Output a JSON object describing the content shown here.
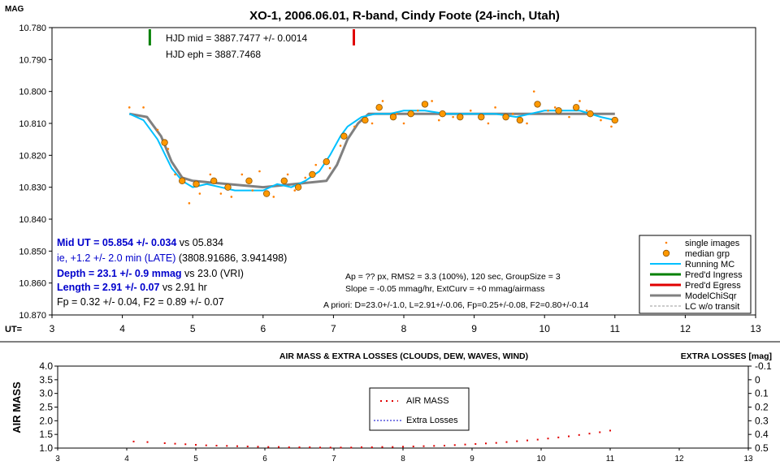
{
  "top_chart": {
    "title": "XO-1, 2006.06.01, R-band, Cindy Foote (24-inch, Utah)",
    "y_axis_label": "MAG",
    "x_axis_label": "UT=",
    "y_ticks": [
      "10.780",
      "10.790",
      "10.800",
      "10.810",
      "10.820",
      "10.830",
      "10.840",
      "10.850",
      "10.860",
      "10.870"
    ],
    "x_ticks": [
      "3",
      "4",
      "5",
      "6",
      "7",
      "8",
      "9",
      "10",
      "11",
      "12",
      "13"
    ],
    "hjd_mid": "HJD mid = 3887.7477 +/- 0.0014",
    "hjd_eph": "HJD eph = 3887.7468",
    "results": {
      "mid_ut_bold": "Mid UT = 05.854 +/- 0.034",
      "mid_ut_rest": " vs 05.834",
      "ie_line": "ie, +1.2 +/- 2.0 min (LATE)",
      "ie_rest": " (3808.91686, 3.941498)",
      "depth_bold": "Depth = 23.1 +/- 0.9 mmag",
      "depth_rest": " vs 23.0 (VRI)",
      "length_bold": "Length = 2.91 +/- 0.07",
      "length_rest": "  vs 2.91 hr",
      "fp_line": "Fp = 0.32 +/- 0.04, F2 = 0.89 +/- 0.07"
    },
    "fit_info": {
      "line1": "Ap = ?? px, RMS2 = 3.3 (100%), 120 sec, GroupSize = 3",
      "line2": "Slope = -0.05 mmag/hr, ExtCurv = +0 mmag/airmass",
      "line3": "A priori: D=23.0+/-1.0, L=2.91+/-0.06, Fp=0.25+/-0.08, F2=0.80+/-0.14"
    },
    "legend": [
      "single images",
      "median grp",
      "Running MC",
      "Pred'd Ingress",
      "Pred'd Egress",
      "ModelChiSqr",
      "LC w/o transit"
    ],
    "colors": {
      "points": "#ff8000",
      "median": "#ff9900",
      "running": "#00c0ff",
      "ingress": "#008000",
      "egress": "#e00000",
      "model": "#808080",
      "blue_text": "#0000cc"
    }
  },
  "chart_data": [
    {
      "type": "scatter",
      "title": "XO-1, 2006.06.01, R-band, Cindy Foote (24-inch, Utah)",
      "xlabel": "UT=",
      "ylabel": "MAG",
      "xlim": [
        3,
        13
      ],
      "ylim": [
        10.78,
        10.87
      ],
      "y_inverted": true,
      "series": [
        {
          "name": "median grp",
          "x": [
            4.6,
            4.85,
            5.05,
            5.3,
            5.5,
            5.8,
            6.05,
            6.3,
            6.5,
            6.7,
            6.9,
            7.15,
            7.45,
            7.65,
            7.85,
            8.1,
            8.3,
            8.55,
            8.8,
            9.1,
            9.45,
            9.65,
            9.9,
            10.2,
            10.45,
            10.65,
            11.0
          ],
          "y": [
            10.816,
            10.828,
            10.829,
            10.828,
            10.83,
            10.828,
            10.832,
            10.828,
            10.83,
            10.826,
            10.822,
            10.814,
            10.809,
            10.805,
            10.808,
            10.807,
            10.804,
            10.807,
            10.808,
            10.808,
            10.808,
            10.809,
            10.804,
            10.806,
            10.805,
            10.807,
            10.809
          ]
        },
        {
          "name": "single images",
          "x": [
            4.1,
            4.3,
            4.5,
            4.65,
            4.75,
            4.95,
            5.1,
            5.25,
            5.4,
            5.55,
            5.7,
            5.85,
            5.95,
            6.15,
            6.35,
            6.45,
            6.6,
            6.75,
            6.95,
            7.1,
            7.3,
            7.55,
            7.7,
            7.9,
            8.0,
            8.2,
            8.4,
            8.5,
            8.7,
            8.95,
            9.2,
            9.3,
            9.55,
            9.75,
            9.85,
            10.05,
            10.15,
            10.35,
            10.5,
            10.6,
            10.8,
            10.95
          ],
          "y": [
            10.805,
            10.805,
            10.812,
            10.818,
            10.826,
            10.835,
            10.832,
            10.826,
            10.832,
            10.833,
            10.826,
            10.831,
            10.825,
            10.833,
            10.826,
            10.831,
            10.827,
            10.823,
            10.824,
            10.817,
            10.811,
            10.81,
            10.803,
            10.807,
            10.81,
            10.806,
            10.803,
            10.809,
            10.808,
            10.806,
            10.81,
            10.805,
            10.807,
            10.81,
            10.8,
            10.806,
            10.805,
            10.808,
            10.803,
            10.806,
            10.809,
            10.811
          ]
        },
        {
          "name": "Running MC",
          "x": [
            4.1,
            4.3,
            4.5,
            4.7,
            4.85,
            5.0,
            5.2,
            5.4,
            5.6,
            5.8,
            6.0,
            6.2,
            6.4,
            6.6,
            6.8,
            6.95,
            7.1,
            7.2,
            7.4,
            7.6,
            7.8,
            8.0,
            8.3,
            8.6,
            9.0,
            9.3,
            9.6,
            9.8,
            10.0,
            10.3,
            10.5,
            10.8,
            11.0
          ],
          "y": [
            10.807,
            10.809,
            10.815,
            10.824,
            10.828,
            10.83,
            10.829,
            10.83,
            10.831,
            10.831,
            10.831,
            10.829,
            10.83,
            10.828,
            10.825,
            10.82,
            10.814,
            10.811,
            10.808,
            10.807,
            10.807,
            10.806,
            10.806,
            10.807,
            10.807,
            10.807,
            10.808,
            10.807,
            10.806,
            10.806,
            10.806,
            10.808,
            10.809
          ]
        },
        {
          "name": "ModelChiSqr",
          "x": [
            4.1,
            4.35,
            4.55,
            4.7,
            4.85,
            5.0,
            6.0,
            6.9,
            7.05,
            7.2,
            7.35,
            7.5,
            11.0
          ],
          "y": [
            10.807,
            10.808,
            10.814,
            10.822,
            10.827,
            10.828,
            10.83,
            10.828,
            10.823,
            10.815,
            10.81,
            10.807,
            10.807
          ]
        },
        {
          "name": "Pred'd Ingress",
          "x": [
            4.39
          ],
          "y": [
            10.78
          ]
        },
        {
          "name": "Pred'd Egress",
          "x": [
            7.29
          ],
          "y": [
            10.78
          ]
        }
      ]
    },
    {
      "type": "scatter",
      "title": "AIR MASS & EXTRA LOSSES (CLOUDS, DEW, WAVES, WIND)",
      "ylabel": "AIR MASS",
      "y2label": "EXTRA LOSSES [mag]",
      "xlim": [
        3,
        13
      ],
      "ylim": [
        1.0,
        4.0
      ],
      "y2lim": [
        0.5,
        -0.1
      ],
      "y_ticks": [
        "4.0",
        "3.5",
        "3.0",
        "2.5",
        "2.0",
        "1.5",
        "1.0"
      ],
      "y2_ticks": [
        "-0.1",
        "0",
        "0.1",
        "0.2",
        "0.3",
        "0.4",
        "0.5"
      ],
      "x_ticks": [
        "3",
        "4",
        "5",
        "6",
        "7",
        "8",
        "9",
        "10",
        "11",
        "12",
        "13"
      ],
      "series": [
        {
          "name": "AIR MASS",
          "x": [
            4.1,
            4.3,
            4.55,
            4.7,
            4.85,
            5.0,
            5.15,
            5.3,
            5.45,
            5.6,
            5.75,
            5.9,
            6.05,
            6.2,
            6.35,
            6.5,
            6.65,
            6.8,
            6.95,
            7.1,
            7.25,
            7.4,
            7.55,
            7.7,
            7.85,
            8.0,
            8.15,
            8.3,
            8.45,
            8.6,
            8.75,
            8.9,
            9.05,
            9.2,
            9.35,
            9.5,
            9.65,
            9.8,
            9.95,
            10.1,
            10.25,
            10.4,
            10.55,
            10.7,
            10.85,
            11.0
          ],
          "y": [
            1.24,
            1.22,
            1.18,
            1.16,
            1.14,
            1.12,
            1.1,
            1.09,
            1.08,
            1.07,
            1.06,
            1.05,
            1.04,
            1.04,
            1.03,
            1.03,
            1.03,
            1.02,
            1.02,
            1.02,
            1.02,
            1.03,
            1.03,
            1.04,
            1.04,
            1.05,
            1.06,
            1.07,
            1.08,
            1.09,
            1.11,
            1.13,
            1.15,
            1.17,
            1.19,
            1.22,
            1.25,
            1.28,
            1.31,
            1.35,
            1.39,
            1.43,
            1.48,
            1.53,
            1.58,
            1.64
          ]
        },
        {
          "name": "Extra Losses",
          "x": [],
          "y": []
        }
      ]
    }
  ]
}
